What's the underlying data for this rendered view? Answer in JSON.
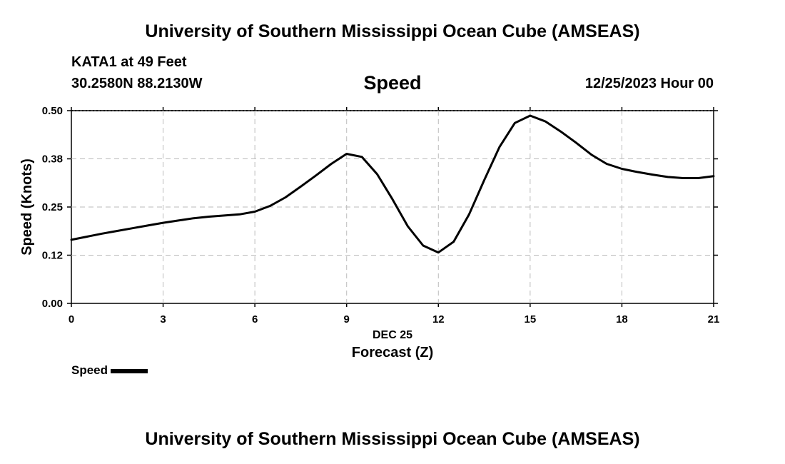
{
  "header": {
    "title": "University of Southern Mississippi Ocean Cube (AMSEAS)",
    "station": "KATA1 at 49 Feet",
    "coords": "30.2580N  88.2130W",
    "variable": "Speed",
    "datetime": "12/25/2023 Hour 00"
  },
  "footer": {
    "title": "University of Southern Mississippi Ocean Cube (AMSEAS)"
  },
  "legend": {
    "label": "Speed"
  },
  "chart_data": {
    "type": "line",
    "title": "Speed",
    "xlabel": "Forecast (Z)",
    "xsublabel": "DEC 25",
    "ylabel": "Speed (Knots)",
    "xlim": [
      0,
      21
    ],
    "ylim": [
      0,
      0.5
    ],
    "xticks": [
      0,
      3,
      6,
      9,
      12,
      15,
      18,
      21
    ],
    "xtick_labels": [
      "0",
      "3",
      "6",
      "9",
      "12",
      "15",
      "18",
      "21"
    ],
    "yticks": [
      0,
      0.125,
      0.25,
      0.375,
      0.5
    ],
    "ytick_labels": [
      "0.00",
      "0.12",
      "0.25",
      "0.38",
      "0.50"
    ],
    "grid": true,
    "color": "#000000",
    "series": [
      {
        "name": "Speed",
        "x": [
          0,
          0.5,
          1,
          1.5,
          2,
          2.5,
          3,
          3.5,
          4,
          4.5,
          5,
          5.5,
          6,
          6.5,
          7,
          7.5,
          8,
          8.5,
          9,
          9.5,
          10,
          10.5,
          11,
          11.5,
          12,
          12.5,
          13,
          13.5,
          14,
          14.5,
          15,
          15.5,
          16,
          16.5,
          17,
          17.5,
          18,
          18.5,
          19,
          19.5,
          20,
          20.5,
          21
        ],
        "values": [
          0.165,
          0.173,
          0.181,
          0.188,
          0.195,
          0.202,
          0.209,
          0.215,
          0.221,
          0.225,
          0.228,
          0.231,
          0.238,
          0.253,
          0.275,
          0.303,
          0.332,
          0.362,
          0.388,
          0.38,
          0.335,
          0.27,
          0.2,
          0.15,
          0.132,
          0.16,
          0.23,
          0.32,
          0.406,
          0.468,
          0.487,
          0.472,
          0.446,
          0.417,
          0.386,
          0.362,
          0.349,
          0.341,
          0.334,
          0.328,
          0.325,
          0.325,
          0.33
        ]
      }
    ]
  }
}
